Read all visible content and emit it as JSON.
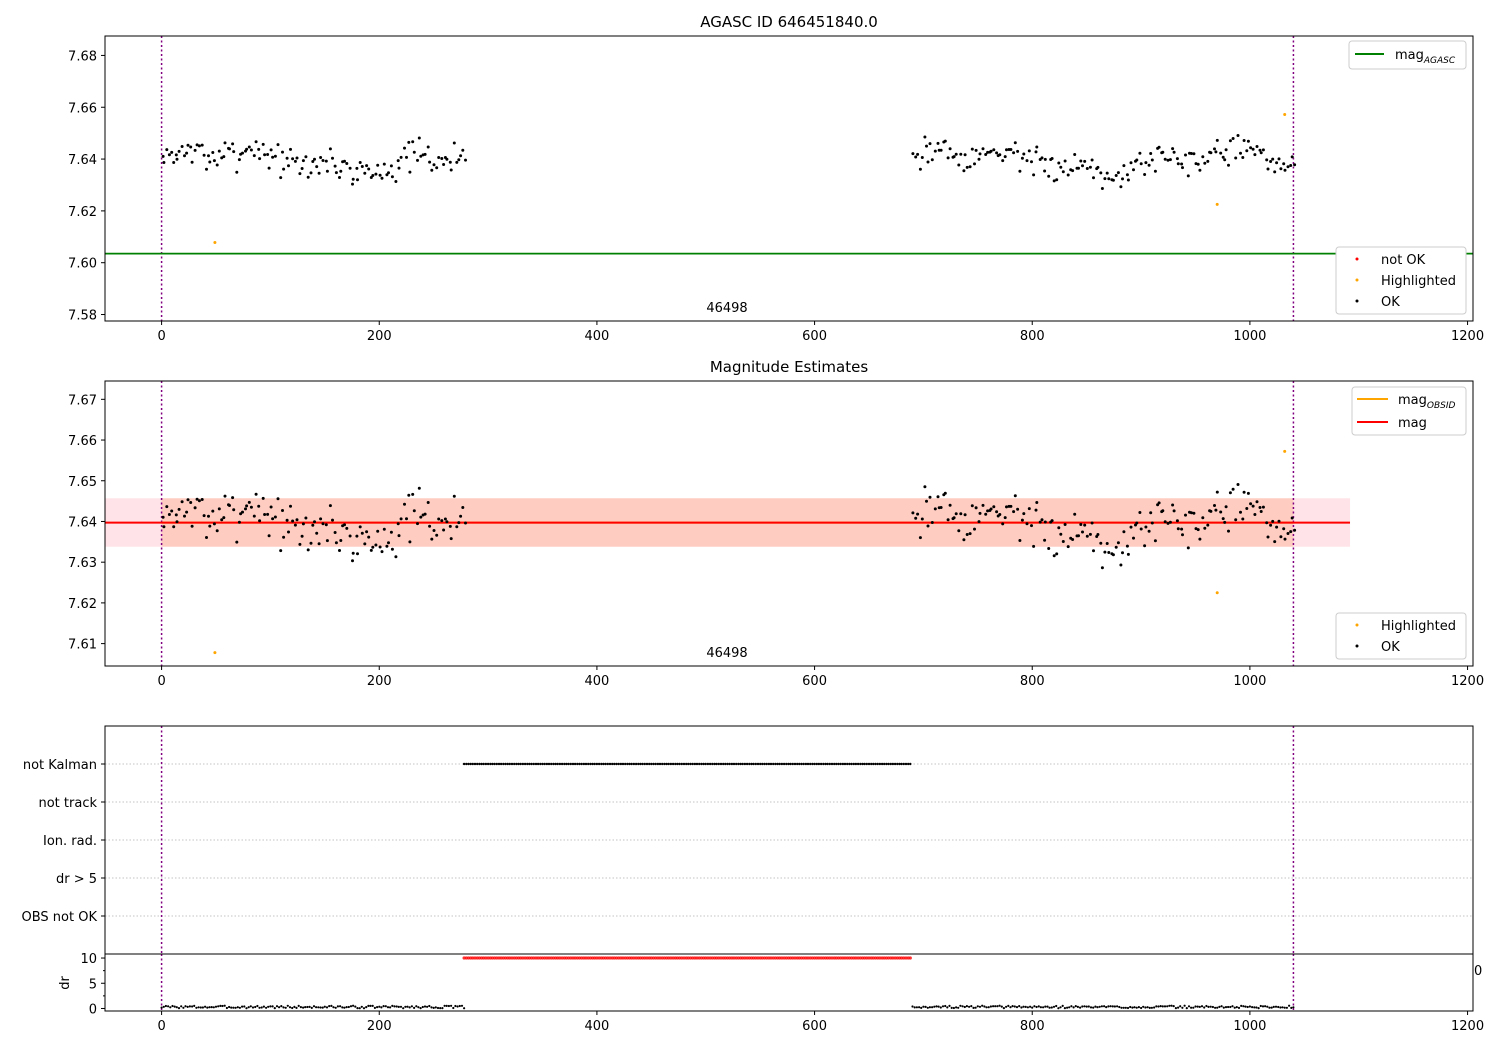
{
  "chart_data": [
    {
      "type": "scatter",
      "title": "AGASC ID 646451840.0",
      "xlabel": "",
      "ylabel": "",
      "xlim": [
        -52,
        1205
      ],
      "ylim": [
        7.5775,
        7.6875
      ],
      "xticks": [
        "0",
        "200",
        "400",
        "600",
        "800",
        "1000",
        "1200"
      ],
      "yticks": [
        "7.58",
        "7.60",
        "7.62",
        "7.64",
        "7.66",
        "7.68"
      ],
      "annotation": {
        "text": "46498",
        "x": 520,
        "y": 7.5815
      },
      "obs_boundaries": [
        0,
        1040
      ],
      "reference_line": {
        "name": "mag_AGASC",
        "value": 7.6035,
        "color": "#008000"
      },
      "legend_top": {
        "entries": [
          {
            "label": "mag",
            "sub": "AGASC",
            "color": "#008000"
          }
        ],
        "placement": "top-right"
      },
      "legend_bottom": {
        "entries": [
          {
            "label": "not OK",
            "color": "#ff0000"
          },
          {
            "label": "Highlighted",
            "color": "#ffa500"
          },
          {
            "label": "OK",
            "color": "#000000"
          }
        ],
        "placement": "bottom-right"
      },
      "series": [
        {
          "name": "OK",
          "color": "#000000",
          "segments": [
            {
              "x_start": 0,
              "x_end": 278,
              "step": 2
            },
            {
              "x_start": 690,
              "x_end": 1040,
              "step": 2
            }
          ],
          "center": 7.6395,
          "spread": 0.0045
        },
        {
          "name": "Highlighted",
          "color": "#ffa500",
          "points": [
            [
              49,
              7.6078
            ],
            [
              970,
              7.6225
            ],
            [
              1032,
              7.6572
            ]
          ]
        }
      ]
    },
    {
      "type": "scatter",
      "title": "Magnitude Estimates",
      "xlabel": "",
      "ylabel": "",
      "xlim": [
        -52,
        1205
      ],
      "ylim": [
        7.6045,
        7.6745
      ],
      "xticks": [
        "0",
        "200",
        "400",
        "600",
        "800",
        "1000",
        "1200"
      ],
      "yticks": [
        "7.61",
        "7.62",
        "7.63",
        "7.64",
        "7.65",
        "7.66",
        "7.67"
      ],
      "annotation": {
        "text": "46498",
        "x": 520,
        "y": 7.6065
      },
      "obs_boundaries": [
        0,
        1040
      ],
      "mag_line": {
        "name": "mag",
        "value": 7.6397,
        "color": "#ff0000",
        "x_range": [
          -52,
          1092
        ]
      },
      "mag_obsid_line": {
        "name": "mag_OBSID",
        "value": 7.6397,
        "color": "#ffa500",
        "x_range": [
          0,
          1040
        ]
      },
      "band_mag": {
        "low": 7.6338,
        "high": 7.6457,
        "x_range": [
          -52,
          1092
        ],
        "color": "#ffc0cb"
      },
      "band_obsid": {
        "low": 7.6338,
        "high": 7.6457,
        "x_range": [
          0,
          1040
        ],
        "color": "#ffa07a"
      },
      "legend_top": {
        "entries": [
          {
            "label": "mag",
            "sub": "OBSID",
            "color": "#ffa500"
          },
          {
            "label": "mag",
            "sub": "",
            "color": "#ff0000"
          }
        ],
        "placement": "top-right"
      },
      "legend_bottom": {
        "entries": [
          {
            "label": "Highlighted",
            "color": "#ffa500"
          },
          {
            "label": "OK",
            "color": "#000000"
          }
        ],
        "placement": "bottom-right"
      },
      "series": [
        {
          "name": "OK",
          "color": "#000000",
          "segments": [
            {
              "x_start": 0,
              "x_end": 278,
              "step": 2
            },
            {
              "x_start": 690,
              "x_end": 1040,
              "step": 2
            }
          ],
          "center": 7.6395,
          "spread": 0.0045
        },
        {
          "name": "Highlighted",
          "color": "#ffa500",
          "points": [
            [
              49,
              7.6078
            ],
            [
              970,
              7.6225
            ],
            [
              1032,
              7.6572
            ]
          ]
        }
      ]
    },
    {
      "type": "scatter",
      "title": "",
      "xlabel": "",
      "ylabel": "",
      "xlim": [
        -52,
        1205
      ],
      "categories": [
        "not Kalman",
        "not track",
        "Ion. rad.",
        "dr > 5",
        "OBS not OK"
      ],
      "obs_boundaries": [
        0,
        1040
      ],
      "flag_segments": [
        {
          "category": "not Kalman",
          "x_start": 278,
          "x_end": 688
        }
      ]
    },
    {
      "type": "scatter",
      "title": "",
      "xlabel": "",
      "ylabel": "dr",
      "xlim": [
        -52,
        1205
      ],
      "ylim": [
        -0.5,
        10.8
      ],
      "xticks": [
        "0",
        "200",
        "400",
        "600",
        "800",
        "1000",
        "1200"
      ],
      "yticks": [
        "0",
        "5",
        "10"
      ],
      "overflow_label": "0",
      "obs_boundaries": [
        0,
        1040
      ],
      "series": [
        {
          "name": "dr",
          "color": "#000000",
          "segments": [
            {
              "x_start": 0,
              "x_end": 278,
              "value": 0.3
            },
            {
              "x_start": 690,
              "x_end": 1040,
              "value": 0.3
            }
          ]
        },
        {
          "name": "dr capped",
          "color": "#ff0000",
          "segments": [
            {
              "x_start": 278,
              "x_end": 688,
              "value": 10
            }
          ]
        }
      ]
    }
  ]
}
